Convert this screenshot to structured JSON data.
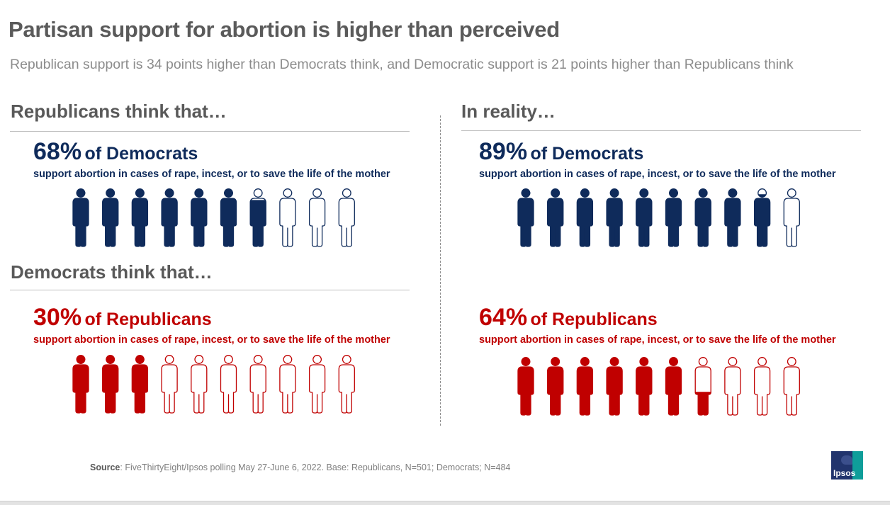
{
  "title": "Partisan support for abortion is higher than perceived",
  "subtitle": "Republican support is 34 points higher than Democrats think, and Democratic support is 21 points higher than Republicans think",
  "left": {
    "heading_top": "Republicans think that…",
    "heading_bottom": "Democrats think that…"
  },
  "right": {
    "heading": "In reality…"
  },
  "colors": {
    "democrat": "#0f2b5b",
    "republican": "#c00000"
  },
  "chart_data": [
    {
      "type": "pictograph",
      "panel": "Republicans think that…",
      "percent": 68,
      "percent_label": "68%",
      "group": "of Democrats",
      "description": "support abortion in cases of rape, incest, or to save the life of the mother",
      "icons_total": 10,
      "color_key": "democrat"
    },
    {
      "type": "pictograph",
      "panel": "Democrats think that…",
      "percent": 30,
      "percent_label": "30%",
      "group": "of Republicans",
      "description": "support abortion in cases of rape, incest, or to save the life of the mother",
      "icons_total": 10,
      "color_key": "republican"
    },
    {
      "type": "pictograph",
      "panel": "In reality…",
      "percent": 89,
      "percent_label": "89%",
      "group": "of Democrats",
      "description": "support abortion in cases of rape, incest, or to save the life of the mother",
      "icons_total": 10,
      "color_key": "democrat"
    },
    {
      "type": "pictograph",
      "panel": "In reality…",
      "percent": 64,
      "percent_label": "64%",
      "group": "of Republicans",
      "description": "support abortion in cases of rape, incest, or to save the life of the mother",
      "icons_total": 10,
      "color_key": "republican"
    }
  ],
  "source": {
    "label": "Source",
    "text": ": FiveThirtyEight/Ipsos polling May 27-June 6, 2022. Base: Republicans, N=501; Democrats; N=484"
  },
  "logo_text": "Ipsos"
}
